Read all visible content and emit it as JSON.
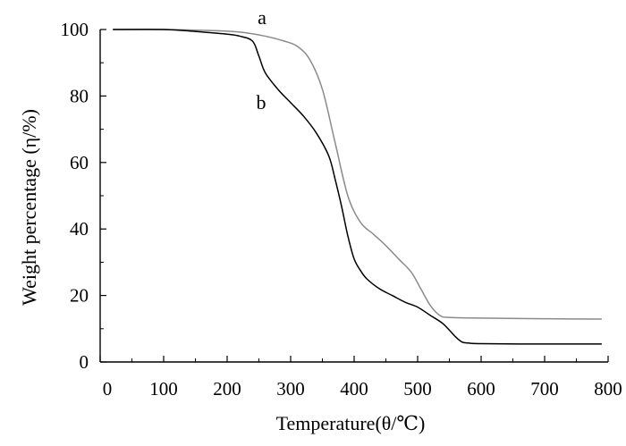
{
  "chart_data": {
    "type": "line",
    "title": "",
    "xlabel": "Temperature(θ/℃)",
    "ylabel": "Weight percentage (η/%)",
    "xlim": [
      0,
      800
    ],
    "ylim": [
      0,
      100
    ],
    "xticks": [
      0,
      100,
      200,
      300,
      400,
      500,
      600,
      700,
      800
    ],
    "yticks": [
      0,
      20,
      40,
      60,
      80,
      100
    ],
    "grid": false,
    "legend": "none",
    "series": [
      {
        "name": "a",
        "color": "#8a8a8a",
        "x": [
          20,
          100,
          150,
          200,
          230,
          260,
          290,
          310,
          330,
          350,
          370,
          390,
          410,
          430,
          450,
          470,
          490,
          505,
          520,
          535,
          550,
          600,
          700,
          790
        ],
        "y": [
          100,
          100,
          99.8,
          99.5,
          99,
          98,
          96.5,
          95,
          91,
          82,
          66,
          50,
          42,
          38.5,
          35,
          31,
          27,
          22,
          17,
          14,
          13.4,
          13.2,
          13,
          12.9
        ]
      },
      {
        "name": "b",
        "color": "#000000",
        "x": [
          20,
          100,
          150,
          200,
          220,
          240,
          250,
          260,
          280,
          300,
          320,
          340,
          360,
          370,
          380,
          390,
          400,
          410,
          420,
          440,
          460,
          480,
          500,
          520,
          540,
          560,
          570,
          580,
          600,
          700,
          790
        ],
        "y": [
          100,
          100,
          99.4,
          98.6,
          98,
          96.5,
          92,
          87,
          82,
          78,
          74,
          69,
          62,
          55,
          47,
          38,
          31,
          27.5,
          25,
          22,
          20,
          18,
          16.5,
          14,
          11.5,
          7.5,
          6,
          5.7,
          5.5,
          5.4,
          5.4
        ]
      }
    ]
  }
}
